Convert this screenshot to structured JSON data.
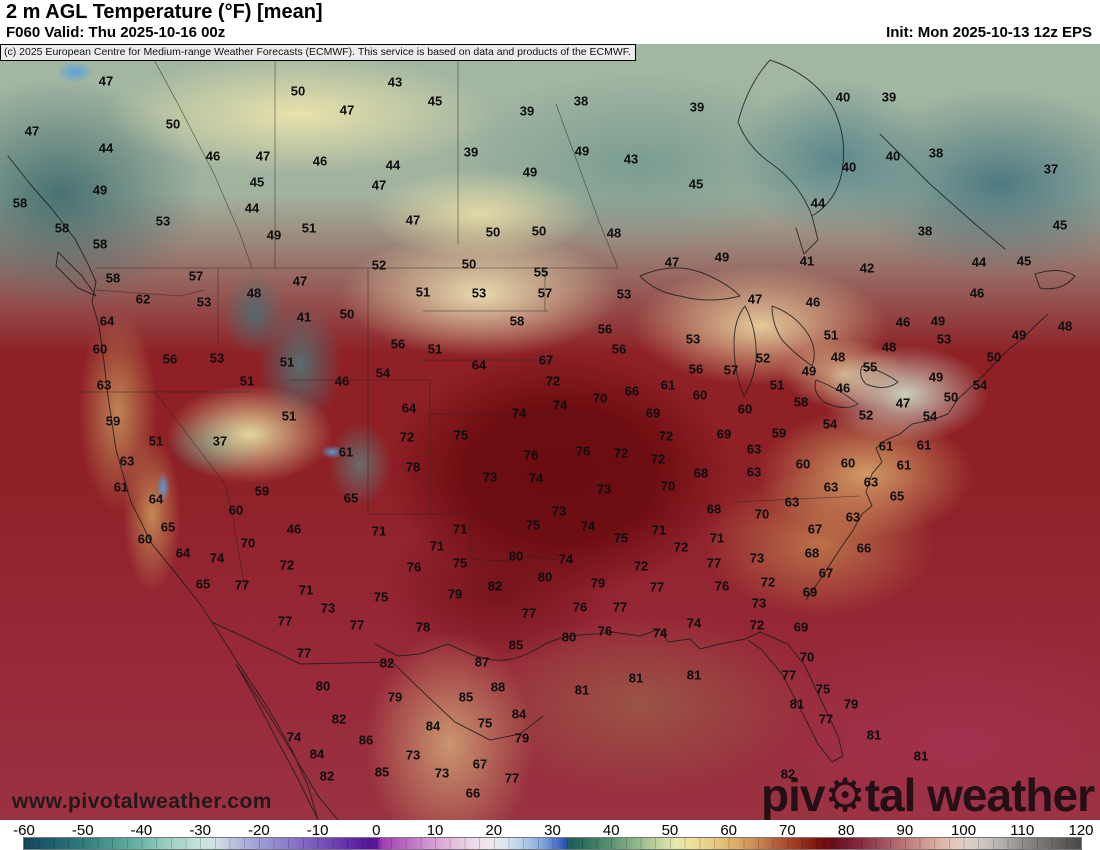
{
  "header": {
    "title": "2 m AGL Temperature (°F) [mean]",
    "forecast": "F060 Valid: Thu 2025-10-16 00z",
    "init": "Init: Mon 2025-10-13 12z EPS",
    "copyright": "(c) 2025 European Centre for Medium-range Weather Forecasts (ECMWF). This service is based on data and products of the ECMWF."
  },
  "watermark": {
    "url": "www.pivotalweather.com",
    "brand_prefix": "piv",
    "brand_suffix": "tal weather",
    "gear_icon": "⚙"
  },
  "colorbar": {
    "unit": "°F",
    "ticks": [
      -60,
      -50,
      -40,
      -30,
      -20,
      -10,
      0,
      10,
      20,
      30,
      40,
      50,
      60,
      70,
      80,
      90,
      100,
      110,
      120
    ],
    "stops": [
      [
        -60,
        "#16455e"
      ],
      [
        -55,
        "#1f6070"
      ],
      [
        -50,
        "#2e7d7d"
      ],
      [
        -45,
        "#4a9a90"
      ],
      [
        -40,
        "#6fb6a8"
      ],
      [
        -35,
        "#9ed2c4"
      ],
      [
        -30,
        "#c6e4dc"
      ],
      [
        -27,
        "#cfe0e4"
      ],
      [
        -24,
        "#b6bedd"
      ],
      [
        -20,
        "#9f9fd5"
      ],
      [
        -16,
        "#8f82cb"
      ],
      [
        -12,
        "#8165c1"
      ],
      [
        -8,
        "#7148b5"
      ],
      [
        -4,
        "#6128a8"
      ],
      [
        -1,
        "#541499"
      ],
      [
        0,
        "#5c16a0"
      ],
      [
        1,
        "#a23cb4"
      ],
      [
        4,
        "#b560be"
      ],
      [
        8,
        "#cd8ccd"
      ],
      [
        12,
        "#e0b4dc"
      ],
      [
        16,
        "#edd6e8"
      ],
      [
        19,
        "#f0e8ee"
      ],
      [
        22,
        "#dce6f2"
      ],
      [
        25,
        "#b4cdea"
      ],
      [
        28,
        "#86abdc"
      ],
      [
        31,
        "#4a6ec8"
      ],
      [
        32,
        "#2f55b8"
      ],
      [
        33,
        "#1d5f52"
      ],
      [
        36,
        "#33755f"
      ],
      [
        40,
        "#5c9272"
      ],
      [
        44,
        "#8db589"
      ],
      [
        48,
        "#c2d49f"
      ],
      [
        51,
        "#e6e8ac"
      ],
      [
        54,
        "#eedf99"
      ],
      [
        58,
        "#e6c67c"
      ],
      [
        62,
        "#d8a562"
      ],
      [
        65,
        "#ca8650"
      ],
      [
        68,
        "#b8613e"
      ],
      [
        71,
        "#a43e28"
      ],
      [
        74,
        "#8b2015"
      ],
      [
        76,
        "#740d0c"
      ],
      [
        78,
        "#6a0e1c"
      ],
      [
        80,
        "#781a30"
      ],
      [
        83,
        "#8b3044"
      ],
      [
        86,
        "#9f4e5b"
      ],
      [
        89,
        "#b56c71"
      ],
      [
        92,
        "#c88b87"
      ],
      [
        95,
        "#d8aa9d"
      ],
      [
        98,
        "#e4c4b5"
      ],
      [
        100,
        "#e2cfc5"
      ],
      [
        103,
        "#cec8c3"
      ],
      [
        107,
        "#b0acaa"
      ],
      [
        110,
        "#908c8a"
      ],
      [
        115,
        "#6d6a68"
      ],
      [
        120,
        "#4a4846"
      ]
    ]
  },
  "map": {
    "labels": [
      [
        47,
        106,
        81
      ],
      [
        50,
        298,
        91
      ],
      [
        43,
        395,
        82
      ],
      [
        45,
        435,
        101
      ],
      [
        39,
        527,
        111
      ],
      [
        38,
        581,
        101
      ],
      [
        39,
        697,
        107
      ],
      [
        40,
        843,
        97
      ],
      [
        39,
        889,
        97
      ],
      [
        47,
        347,
        110
      ],
      [
        47,
        32,
        131
      ],
      [
        50,
        173,
        124
      ],
      [
        44,
        106,
        148
      ],
      [
        46,
        213,
        156
      ],
      [
        47,
        263,
        156
      ],
      [
        46,
        320,
        161
      ],
      [
        45,
        257,
        182
      ],
      [
        44,
        252,
        208
      ],
      [
        49,
        100,
        190
      ],
      [
        53,
        163,
        221
      ],
      [
        49,
        274,
        235
      ],
      [
        51,
        309,
        228
      ],
      [
        58,
        20,
        203
      ],
      [
        58,
        62,
        228
      ],
      [
        58,
        100,
        244
      ],
      [
        39,
        471,
        152
      ],
      [
        49,
        582,
        151
      ],
      [
        43,
        631,
        159
      ],
      [
        44,
        393,
        165
      ],
      [
        49,
        530,
        172
      ],
      [
        45,
        696,
        184
      ],
      [
        47,
        379,
        185
      ],
      [
        47,
        413,
        220
      ],
      [
        50,
        493,
        232
      ],
      [
        50,
        539,
        231
      ],
      [
        48,
        614,
        233
      ],
      [
        40,
        893,
        156
      ],
      [
        38,
        936,
        153
      ],
      [
        37,
        1051,
        169
      ],
      [
        40,
        849,
        167
      ],
      [
        44,
        818,
        203
      ],
      [
        38,
        925,
        231
      ],
      [
        45,
        1060,
        225
      ],
      [
        58,
        113,
        278
      ],
      [
        57,
        196,
        276
      ],
      [
        62,
        143,
        299
      ],
      [
        53,
        204,
        302
      ],
      [
        48,
        254,
        293
      ],
      [
        47,
        300,
        281
      ],
      [
        41,
        304,
        317
      ],
      [
        50,
        347,
        314
      ],
      [
        64,
        107,
        321
      ],
      [
        60,
        100,
        349
      ],
      [
        56,
        170,
        359
      ],
      [
        53,
        217,
        358
      ],
      [
        51,
        287,
        362
      ],
      [
        51,
        247,
        381
      ],
      [
        46,
        342,
        381
      ],
      [
        63,
        104,
        385
      ],
      [
        59,
        113,
        421
      ],
      [
        51,
        289,
        416
      ],
      [
        51,
        156,
        441
      ],
      [
        37,
        220,
        441
      ],
      [
        52,
        379,
        265
      ],
      [
        50,
        469,
        264
      ],
      [
        55,
        541,
        272
      ],
      [
        51,
        423,
        292
      ],
      [
        53,
        479,
        293
      ],
      [
        57,
        545,
        293
      ],
      [
        53,
        624,
        294
      ],
      [
        47,
        672,
        262
      ],
      [
        49,
        722,
        257
      ],
      [
        58,
        517,
        321
      ],
      [
        56,
        605,
        329
      ],
      [
        56,
        398,
        344
      ],
      [
        51,
        435,
        349
      ],
      [
        53,
        693,
        339
      ],
      [
        56,
        619,
        349
      ],
      [
        64,
        479,
        365
      ],
      [
        67,
        546,
        360
      ],
      [
        54,
        383,
        373
      ],
      [
        56,
        696,
        369
      ],
      [
        57,
        731,
        370
      ],
      [
        72,
        553,
        381
      ],
      [
        66,
        632,
        391
      ],
      [
        61,
        668,
        385
      ],
      [
        60,
        700,
        395
      ],
      [
        70,
        600,
        398
      ],
      [
        64,
        409,
        408
      ],
      [
        74,
        560,
        405
      ],
      [
        74,
        519,
        413
      ],
      [
        69,
        653,
        413
      ],
      [
        72,
        407,
        437
      ],
      [
        75,
        461,
        435
      ],
      [
        72,
        666,
        436
      ],
      [
        69,
        724,
        434
      ],
      [
        41,
        807,
        261
      ],
      [
        42,
        867,
        268
      ],
      [
        44,
        979,
        262
      ],
      [
        45,
        1024,
        261
      ],
      [
        47,
        755,
        299
      ],
      [
        46,
        813,
        302
      ],
      [
        46,
        977,
        293
      ],
      [
        46,
        903,
        322
      ],
      [
        49,
        938,
        321
      ],
      [
        48,
        1065,
        326
      ],
      [
        51,
        831,
        335
      ],
      [
        53,
        944,
        339
      ],
      [
        49,
        1019,
        335
      ],
      [
        48,
        889,
        347
      ],
      [
        48,
        838,
        357
      ],
      [
        52,
        763,
        358
      ],
      [
        55,
        870,
        367
      ],
      [
        49,
        809,
        371
      ],
      [
        50,
        994,
        357
      ],
      [
        51,
        777,
        385
      ],
      [
        49,
        936,
        377
      ],
      [
        54,
        980,
        385
      ],
      [
        46,
        843,
        388
      ],
      [
        58,
        801,
        402
      ],
      [
        50,
        951,
        397
      ],
      [
        60,
        745,
        409
      ],
      [
        47,
        903,
        403
      ],
      [
        52,
        866,
        415
      ],
      [
        54,
        830,
        424
      ],
      [
        54,
        930,
        416
      ],
      [
        59,
        779,
        433
      ],
      [
        63,
        127,
        461
      ],
      [
        61,
        121,
        487
      ],
      [
        61,
        346,
        452
      ],
      [
        64,
        156,
        499
      ],
      [
        59,
        262,
        491
      ],
      [
        65,
        351,
        498
      ],
      [
        60,
        236,
        510
      ],
      [
        65,
        168,
        527
      ],
      [
        46,
        294,
        529
      ],
      [
        60,
        145,
        539
      ],
      [
        70,
        248,
        543
      ],
      [
        64,
        183,
        553
      ],
      [
        74,
        217,
        558
      ],
      [
        72,
        287,
        565
      ],
      [
        65,
        203,
        584
      ],
      [
        77,
        242,
        585
      ],
      [
        71,
        306,
        590
      ],
      [
        73,
        328,
        608
      ],
      [
        77,
        285,
        621
      ],
      [
        77,
        357,
        625
      ],
      [
        78,
        413,
        467
      ],
      [
        76,
        531,
        455
      ],
      [
        76,
        583,
        451
      ],
      [
        72,
        621,
        453
      ],
      [
        72,
        658,
        459
      ],
      [
        73,
        490,
        477
      ],
      [
        74,
        536,
        478
      ],
      [
        68,
        701,
        473
      ],
      [
        70,
        668,
        486
      ],
      [
        73,
        604,
        489
      ],
      [
        68,
        714,
        509
      ],
      [
        73,
        559,
        511
      ],
      [
        75,
        533,
        525
      ],
      [
        74,
        588,
        526
      ],
      [
        71,
        460,
        529
      ],
      [
        71,
        379,
        531
      ],
      [
        75,
        621,
        538
      ],
      [
        71,
        659,
        530
      ],
      [
        71,
        717,
        538
      ],
      [
        71,
        437,
        546
      ],
      [
        72,
        681,
        547
      ],
      [
        80,
        516,
        556
      ],
      [
        74,
        566,
        559
      ],
      [
        75,
        460,
        563
      ],
      [
        76,
        414,
        567
      ],
      [
        77,
        714,
        563
      ],
      [
        72,
        641,
        566
      ],
      [
        80,
        545,
        577
      ],
      [
        79,
        598,
        583
      ],
      [
        77,
        657,
        587
      ],
      [
        76,
        722,
        586
      ],
      [
        82,
        495,
        586
      ],
      [
        79,
        455,
        594
      ],
      [
        75,
        381,
        597
      ],
      [
        77,
        529,
        613
      ],
      [
        76,
        580,
        607
      ],
      [
        77,
        620,
        607
      ],
      [
        78,
        423,
        627
      ],
      [
        76,
        605,
        631
      ],
      [
        74,
        694,
        623
      ],
      [
        74,
        660,
        633
      ],
      [
        80,
        569,
        637
      ],
      [
        63,
        754,
        449
      ],
      [
        61,
        886,
        446
      ],
      [
        61,
        924,
        445
      ],
      [
        60,
        803,
        464
      ],
      [
        60,
        848,
        463
      ],
      [
        61,
        904,
        465
      ],
      [
        63,
        754,
        472
      ],
      [
        63,
        831,
        487
      ],
      [
        63,
        871,
        482
      ],
      [
        65,
        897,
        496
      ],
      [
        63,
        792,
        502
      ],
      [
        70,
        762,
        514
      ],
      [
        63,
        853,
        517
      ],
      [
        67,
        815,
        529
      ],
      [
        66,
        864,
        548
      ],
      [
        68,
        812,
        553
      ],
      [
        73,
        757,
        558
      ],
      [
        67,
        826,
        573
      ],
      [
        72,
        768,
        582
      ],
      [
        69,
        810,
        592
      ],
      [
        73,
        759,
        603
      ],
      [
        72,
        757,
        625
      ],
      [
        69,
        801,
        627
      ],
      [
        77,
        304,
        653
      ],
      [
        82,
        387,
        663
      ],
      [
        85,
        516,
        645
      ],
      [
        87,
        482,
        662
      ],
      [
        80,
        323,
        686
      ],
      [
        79,
        395,
        697
      ],
      [
        85,
        466,
        697
      ],
      [
        88,
        498,
        687
      ],
      [
        84,
        519,
        714
      ],
      [
        82,
        339,
        719
      ],
      [
        84,
        433,
        726
      ],
      [
        75,
        485,
        723
      ],
      [
        74,
        294,
        737
      ],
      [
        86,
        366,
        740
      ],
      [
        79,
        522,
        738
      ],
      [
        84,
        317,
        754
      ],
      [
        73,
        413,
        755
      ],
      [
        67,
        480,
        764
      ],
      [
        73,
        442,
        773
      ],
      [
        82,
        327,
        776
      ],
      [
        85,
        382,
        772
      ],
      [
        77,
        512,
        778
      ],
      [
        66,
        473,
        793
      ],
      [
        81,
        636,
        678
      ],
      [
        81,
        694,
        675
      ],
      [
        81,
        582,
        690
      ],
      [
        70,
        807,
        657
      ],
      [
        77,
        789,
        675
      ],
      [
        75,
        823,
        689
      ],
      [
        81,
        797,
        704
      ],
      [
        79,
        851,
        704
      ],
      [
        77,
        826,
        719
      ],
      [
        81,
        874,
        735
      ],
      [
        82,
        788,
        774
      ],
      [
        81,
        921,
        756
      ]
    ]
  }
}
